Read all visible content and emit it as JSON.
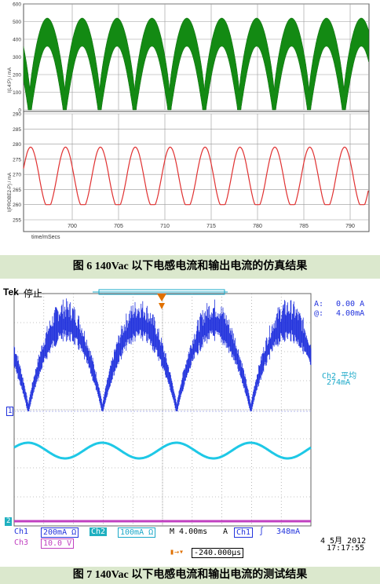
{
  "sim": {
    "top": {
      "ylabel": "I(L4:P) / mA",
      "yticks": [
        "600",
        "500",
        "400",
        "300",
        "200",
        "100",
        "0"
      ]
    },
    "bottom": {
      "ylabel": "I(PROBE2-P) / mA",
      "yticks": [
        "290",
        "285",
        "280",
        "275",
        "270",
        "265",
        "260",
        "255"
      ]
    },
    "xticks": [
      "700",
      "705",
      "710",
      "715",
      "780",
      "785",
      "790"
    ],
    "xlabel": "time/mSecs"
  },
  "caption1": "图 6 140Vac 以下电感电流和输出电流的仿真结果",
  "scope": {
    "brand": "Tek",
    "status": "停止",
    "cursor_a": "A:",
    "cursor_a_val": "0.00 A",
    "cursor_b": "@:",
    "cursor_b_val": "4.00mA",
    "ch2_avg_label": "Ch2 平均",
    "ch2_avg_val": "274mA",
    "marker1": "1",
    "marker2": "2",
    "ch1": "Ch1",
    "ch1_scale": "200mA Ω",
    "ch2": "Ch2",
    "ch2_scale": "100mA Ω",
    "timebase": "M 4.00ms",
    "trig_label": "A",
    "trig_ch": "Ch1",
    "trig_level": "348mA",
    "ch3": "Ch3",
    "ch3_scale": "10.0 V",
    "position": "-240.000µs",
    "date": "4 5月  2012",
    "time": "17:17:55"
  },
  "caption2": "图 7 140Vac 以下电感电流和输出电流的测试结果",
  "chart_data": [
    {
      "type": "line",
      "title": "",
      "xlabel": "time/mSecs",
      "ylabel": "I(L4:P) / mA",
      "xlim": [
        696,
        795
      ],
      "ylim": [
        0,
        600
      ],
      "grid": true,
      "series": [
        {
          "color": "#138a13",
          "envelope": true,
          "x": [
            696,
            697,
            699,
            701,
            703,
            705,
            707,
            709,
            711,
            713,
            715,
            717,
            719,
            721,
            723,
            725,
            727,
            729,
            731,
            733,
            735,
            737,
            739,
            741,
            743,
            745,
            747,
            749,
            751,
            753,
            755,
            757,
            759,
            761,
            763,
            765,
            767,
            769,
            771,
            773,
            775,
            777,
            779,
            781,
            783,
            785,
            787,
            789,
            791,
            793,
            795
          ],
          "upper": [
            430,
            460,
            330,
            120,
            220,
            460,
            520,
            430,
            120,
            140,
            460,
            520,
            430,
            150,
            150,
            440,
            520,
            430,
            130,
            150,
            440,
            520,
            430,
            140,
            150,
            440,
            520,
            430,
            130,
            150,
            440,
            520,
            430,
            140,
            150,
            440,
            520,
            430,
            130,
            150,
            440,
            520,
            430,
            140,
            150,
            440,
            520,
            430,
            130,
            160,
            520
          ],
          "lower": [
            330,
            300,
            150,
            0,
            60,
            330,
            380,
            280,
            0,
            40,
            330,
            380,
            280,
            0,
            40,
            330,
            380,
            280,
            0,
            40,
            330,
            380,
            280,
            0,
            40,
            330,
            380,
            280,
            0,
            40,
            330,
            380,
            280,
            0,
            40,
            330,
            380,
            280,
            0,
            40,
            330,
            380,
            280,
            0,
            40,
            330,
            380,
            280,
            0,
            40,
            380
          ]
        }
      ]
    },
    {
      "type": "line",
      "title": "",
      "xlabel": "time/mSecs",
      "ylabel": "I(PROBE2-P) / mA",
      "xlim": [
        696,
        795
      ],
      "ylim": [
        255,
        290
      ],
      "grid": true,
      "series": [
        {
          "color": "#e03030",
          "x": [
            696,
            698,
            700,
            702,
            704,
            706,
            708,
            710,
            712,
            714,
            716,
            718,
            720,
            722,
            724,
            726,
            728,
            730,
            732,
            734,
            736,
            738,
            740,
            742,
            744,
            746,
            748,
            750,
            752,
            754,
            756,
            758,
            760,
            762,
            764,
            766,
            768,
            770,
            772,
            774,
            776,
            778,
            780,
            782,
            784,
            786,
            788,
            790,
            792,
            794
          ],
          "y": [
            270,
            278,
            278,
            272,
            264,
            260,
            264,
            272,
            278,
            278,
            272,
            264,
            260,
            264,
            272,
            278,
            278,
            272,
            264,
            260,
            264,
            272,
            278,
            278,
            272,
            264,
            260,
            264,
            272,
            278,
            278,
            272,
            264,
            260,
            264,
            272,
            278,
            278,
            272,
            264,
            260,
            264,
            272,
            278,
            278,
            272,
            264,
            260,
            264,
            270
          ]
        }
      ]
    }
  ],
  "colors": {
    "sim_green": "#138a13",
    "sim_red": "#e03030",
    "scope_blue": "#2233dd",
    "scope_cyan": "#1ec8e6",
    "scope_magenta": "#c040c0",
    "caption_bg": "#dbe8cd"
  }
}
